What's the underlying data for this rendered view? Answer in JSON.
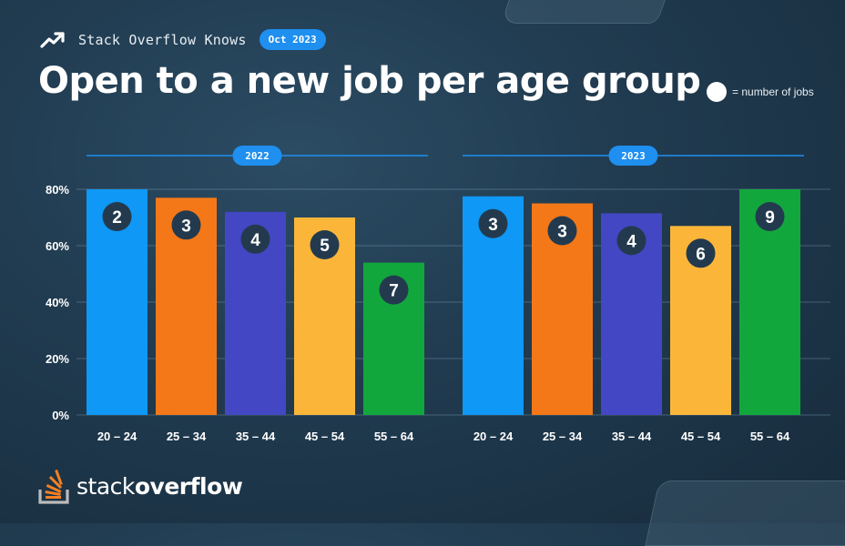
{
  "header": {
    "kicker": "Stack Overflow Knows",
    "date_badge": "Oct 2023",
    "title": "Open to a new job per age group",
    "legend_label": "= number of jobs"
  },
  "footer": {
    "logo_light": "stack",
    "logo_bold": "overflow"
  },
  "colors": {
    "background": "#203a4f",
    "badge": "#1f8ff0",
    "series": [
      "#0f98f5",
      "#f47818",
      "#4347c4",
      "#fbb63a",
      "#12a73d"
    ],
    "marker": "#233a4e"
  },
  "icons": {
    "trend": "trending-up-icon",
    "legend": "white-circle-icon",
    "logo": "stack-overflow-logo-icon"
  },
  "chart_data": {
    "type": "bar",
    "yticks": [
      "80%",
      "60%",
      "40%",
      "20%",
      "0%"
    ],
    "ylim": [
      0,
      80
    ],
    "grid": true,
    "groups": [
      {
        "label": "2022",
        "categories": [
          "20 – 24",
          "25 – 34",
          "35 – 44",
          "45 – 54",
          "55 – 64"
        ],
        "values": [
          80,
          77,
          72,
          70,
          54
        ],
        "jobs": [
          "2",
          "3",
          "4",
          "5",
          "7"
        ]
      },
      {
        "label": "2023",
        "categories": [
          "20 – 24",
          "25 – 34",
          "35 – 44",
          "45 – 54",
          "55 – 64"
        ],
        "values": [
          77.5,
          75,
          71.5,
          67,
          80
        ],
        "jobs": [
          "3",
          "3",
          "4",
          "6",
          "9"
        ]
      }
    ]
  }
}
